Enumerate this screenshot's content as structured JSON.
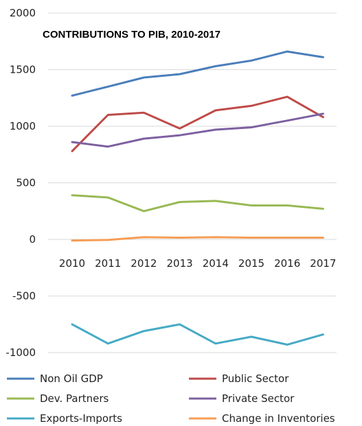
{
  "chart_data": {
    "type": "line",
    "title": "CONTRIBUTIONS TO PIB, 2010-2017",
    "categories": [
      "2010",
      "2011",
      "2012",
      "2013",
      "2014",
      "2015",
      "2016",
      "2017"
    ],
    "ylim": [
      -1000,
      2000
    ],
    "yticks": [
      "2000",
      "1500",
      "1000",
      "500",
      "0",
      "-500",
      "-1000"
    ],
    "ytick_values": [
      2000,
      1500,
      1000,
      500,
      0,
      -500,
      -1000
    ],
    "grid": true,
    "legend_position": "bottom",
    "series": [
      {
        "name": "Non Oil GDP",
        "color": "#4a7ebb",
        "values": [
          1270,
          1350,
          1430,
          1460,
          1530,
          1580,
          1660,
          1610
        ]
      },
      {
        "name": "Public Sector",
        "color": "#be4b48",
        "values": [
          780,
          1100,
          1120,
          980,
          1140,
          1180,
          1260,
          1080
        ]
      },
      {
        "name": "Dev. Partners",
        "color": "#98b954",
        "values": [
          390,
          370,
          250,
          330,
          340,
          300,
          300,
          270
        ]
      },
      {
        "name": "Private Sector",
        "color": "#7d60a0",
        "values": [
          860,
          820,
          890,
          920,
          970,
          990,
          1050,
          1110
        ]
      },
      {
        "name": "Exports-Imports",
        "color": "#46aac5",
        "values": [
          -750,
          -920,
          -810,
          -750,
          -920,
          -860,
          -930,
          -840
        ]
      },
      {
        "name": "Change in Inventories",
        "color": "#f59d56",
        "values": [
          -10,
          -5,
          20,
          15,
          20,
          15,
          15,
          15
        ]
      }
    ]
  }
}
